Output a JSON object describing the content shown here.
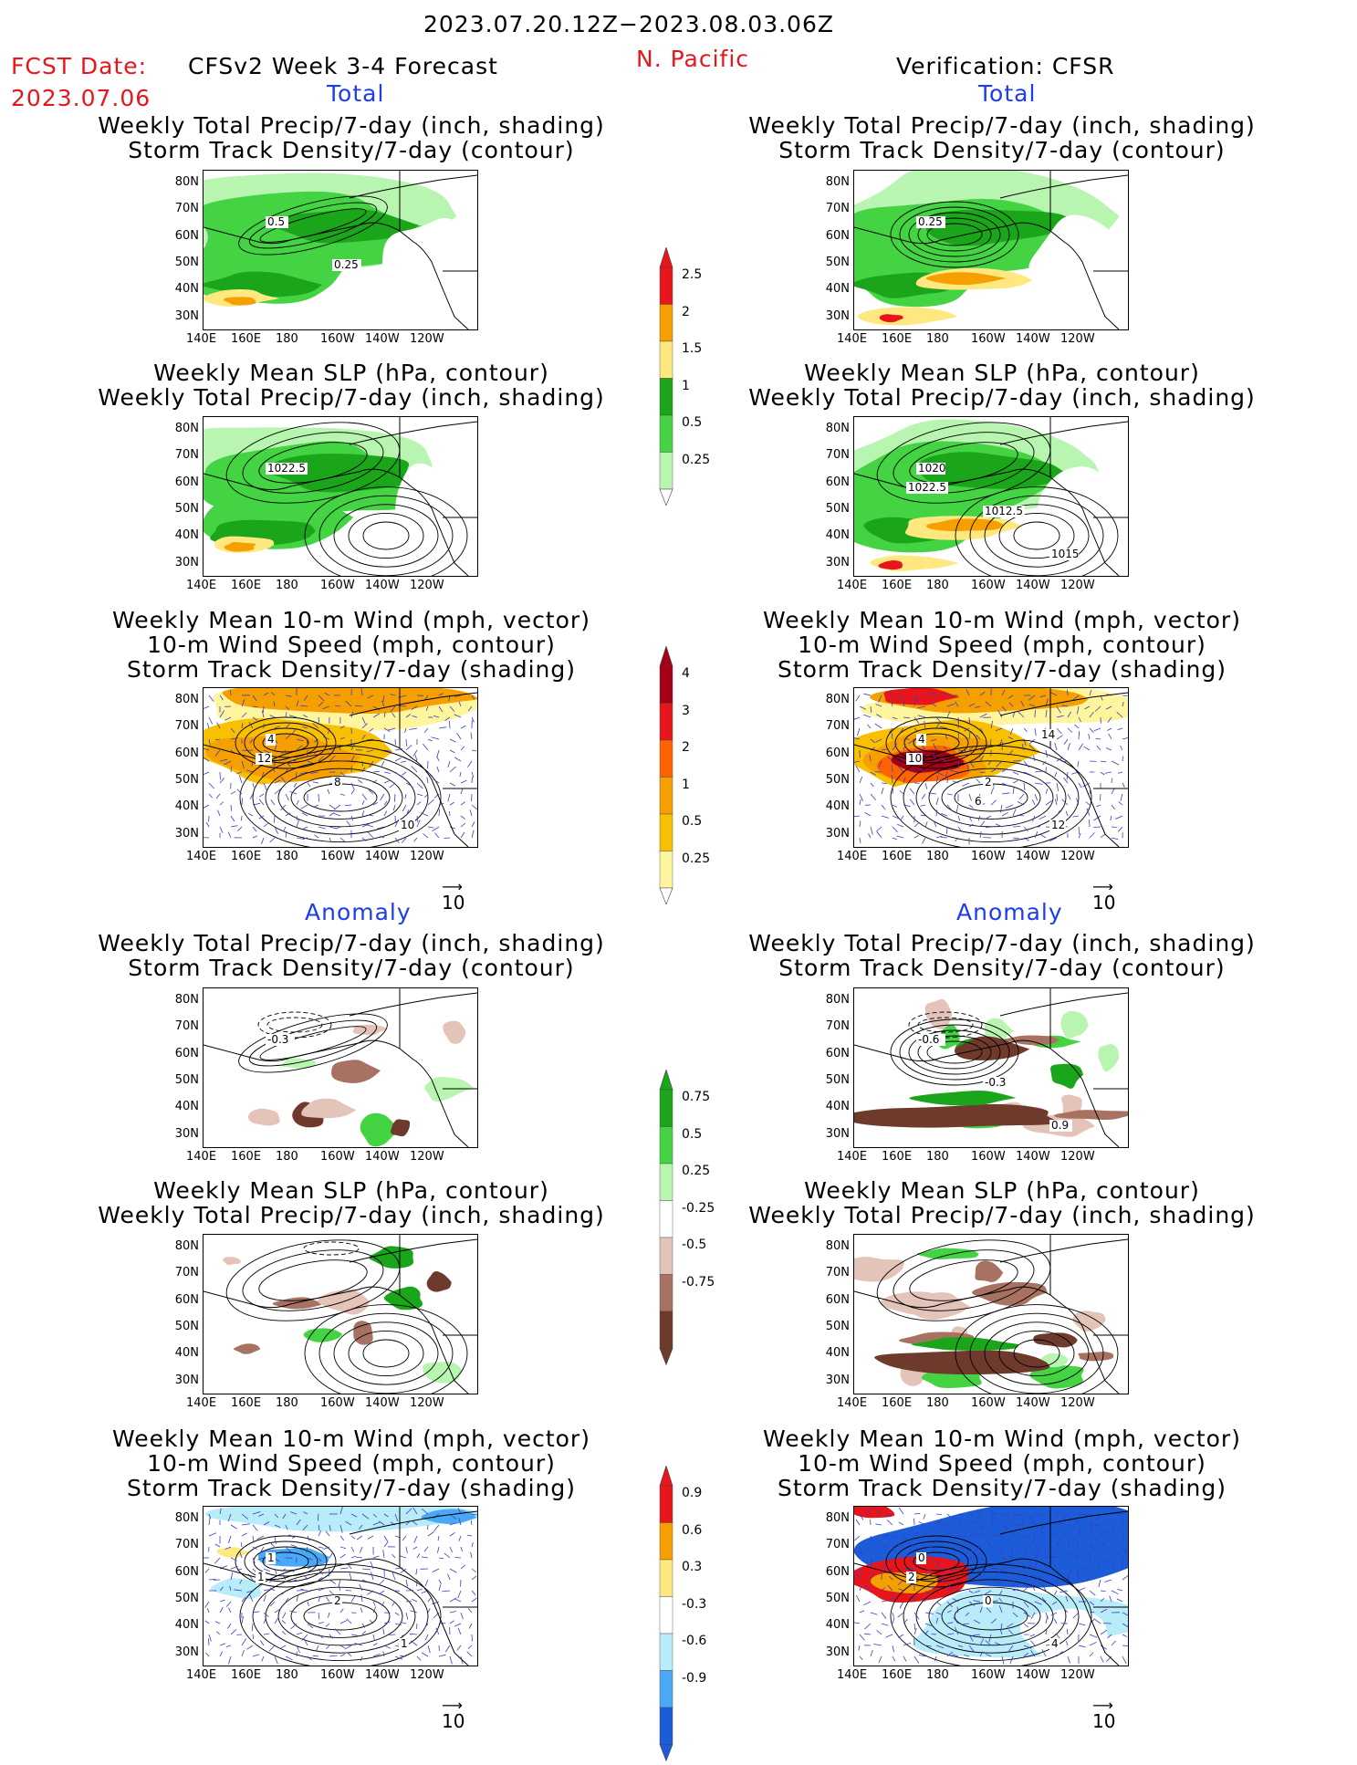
{
  "header": {
    "period": "2023.07.20.12Z−2023.08.03.06Z",
    "fcst_label": "FCST Date:",
    "fcst_date": "2023.07.06",
    "model": "CFSv2 Week 3-4 Forecast",
    "region": "N. Pacific",
    "verification": "Verification: CFSR"
  },
  "sections": {
    "total_left": "Total",
    "total_right": "Total",
    "anom_left": "Anomaly",
    "anom_right": "Anomaly"
  },
  "titles": {
    "precip_storm": [
      "Weekly Total Precip/7-day (inch, shading)",
      "Storm Track Density/7-day (contour)"
    ],
    "slp_precip": [
      "Weekly Mean SLP (hPa, contour)",
      "Weekly Total Precip/7-day (inch, shading)"
    ],
    "wind": [
      "Weekly Mean 10-m Wind (mph, vector)",
      "10-m Wind Speed (mph, contour)",
      "Storm Track Density/7-day (shading)"
    ]
  },
  "axes": {
    "lat_labels": [
      "80N",
      "70N",
      "60N",
      "50N",
      "40N",
      "30N"
    ],
    "lon_labels": [
      "140E",
      "160E",
      "180",
      "160W",
      "140W",
      "120W"
    ]
  },
  "vector_ref": "10",
  "map_labels": {
    "m1l": [
      "0.5",
      "0.25"
    ],
    "m1r": [
      "0.25"
    ],
    "m2l": [
      "1022.5"
    ],
    "m2r": [
      "1020",
      "1012.5",
      "1015",
      "1022.5"
    ],
    "m3l": [
      "4",
      "8",
      "10",
      "12"
    ],
    "m3r": [
      "4",
      "2",
      "12",
      "10",
      "6",
      "14"
    ],
    "m4l": [
      "-0.3"
    ],
    "m4r": [
      "-0.6",
      "-0.3",
      "0.9"
    ],
    "m6l": [
      "1",
      "2",
      "1",
      "1"
    ],
    "m6r": [
      "0",
      "0",
      "4",
      "2"
    ]
  },
  "colorbars": {
    "precip_total": {
      "labels": [
        "2.5",
        "2",
        "1.5",
        "1",
        "0.5",
        "0.25"
      ],
      "colors": [
        "#e8161b",
        "#f5a000",
        "#ffe880",
        "#1aa51a",
        "#43d343",
        "#b8f5b0"
      ]
    },
    "storm_total": {
      "labels": [
        "4",
        "3",
        "2",
        "1",
        "0.5",
        "0.25"
      ],
      "colors": [
        "#a50016",
        "#e8161b",
        "#ff6200",
        "#f5a000",
        "#f8c000",
        "#fff59d"
      ]
    },
    "precip_anom": {
      "labels": [
        "0.75",
        "0.5",
        "0.25",
        "-0.25",
        "-0.5",
        "-0.75"
      ],
      "colors": [
        "#1aa51a",
        "#43d343",
        "#b8f5b0",
        "#ffffff",
        "#e4c3b8",
        "#a87262",
        "#6e3a2c"
      ]
    },
    "storm_anom": {
      "labels": [
        "0.9",
        "0.6",
        "0.3",
        "-0.3",
        "-0.6",
        "-0.9"
      ],
      "colors": [
        "#e8161b",
        "#f5a000",
        "#ffe880",
        "#ffffff",
        "#b8ecf8",
        "#4aa8f5",
        "#1c5cd8"
      ]
    }
  }
}
